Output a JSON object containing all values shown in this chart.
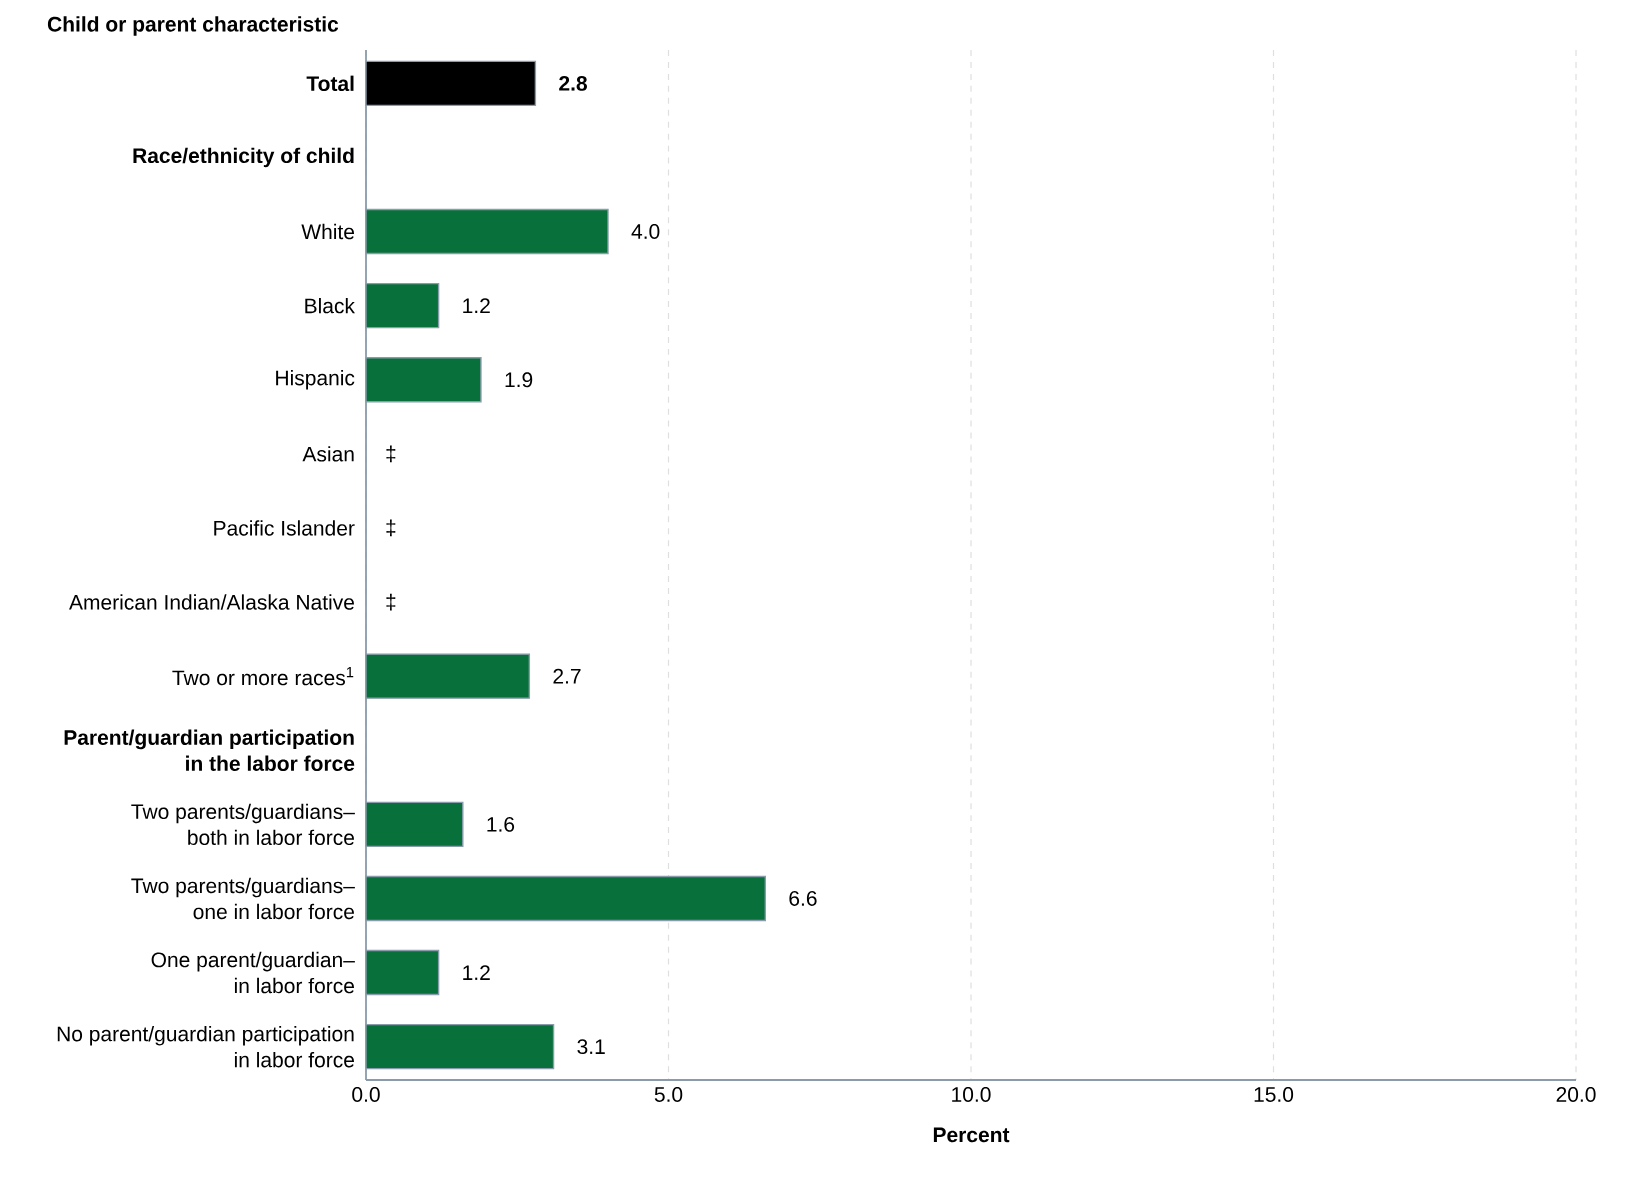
{
  "chart_data": {
    "type": "bar",
    "orientation": "horizontal",
    "ylabel": "Child or parent characteristic",
    "xlabel": "Percent",
    "categories": [
      "Total",
      "Race/ethnicity of child",
      "White",
      "Black",
      "Hispanic",
      "Asian",
      "Pacific Islander",
      "American Indian/Alaska Native",
      "Two or more races$^{1}$",
      "Parent/guardian participation in the labor force",
      "Two parents/guardians–both in labor force",
      "Two parents/guardians–one in labor force",
      "One parent/guardian–in labor force",
      "No parent/guardian participation in labor force"
    ],
    "values": [
      2.8,
      null,
      4.0,
      1.2,
      1.9,
      null,
      null,
      null,
      2.7,
      null,
      1.6,
      6.6,
      1.2,
      3.1
    ],
    "value_labels": [
      "2.8",
      null,
      "4.0",
      "1.2",
      "1.9",
      "‡",
      "‡",
      "‡",
      "2.7",
      null,
      "1.6",
      "6.6",
      "1.2",
      "3.1"
    ],
    "colors": [
      "#000000",
      "#08703a",
      "#08703a",
      "#08703a",
      "#08703a",
      "#08703a",
      "#08703a",
      "#08703a",
      "#08703a",
      "#08703a",
      "#08703a",
      "#08703a",
      "#08703a",
      "#08703a"
    ],
    "xlim": [
      0,
      20
    ],
    "xticks": [
      {
        "value": 0,
        "label": "0.0"
      },
      {
        "value": 5,
        "label": "5.0"
      },
      {
        "value": 10,
        "label": "10.0"
      },
      {
        "value": 15,
        "label": "15.0"
      },
      {
        "value": 20,
        "label": "20.0"
      }
    ],
    "grid": "x"
  }
}
